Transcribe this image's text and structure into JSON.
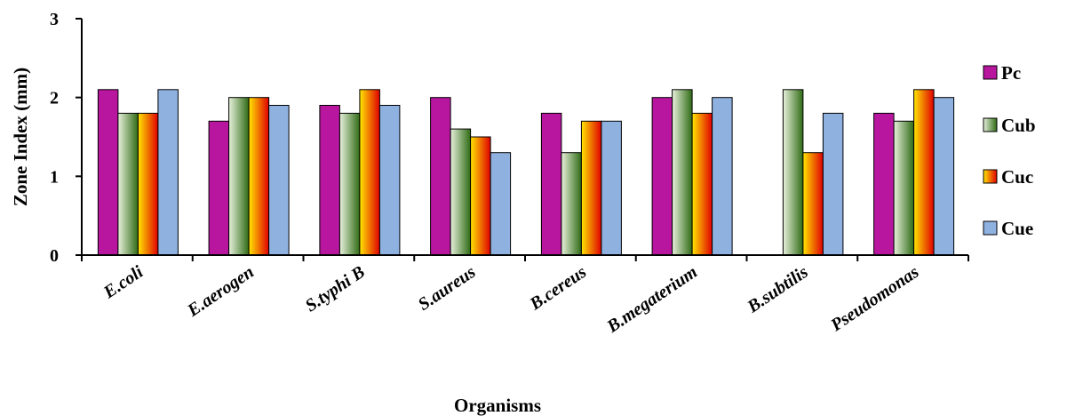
{
  "chart_data": {
    "type": "bar",
    "title": "",
    "xlabel": "Organisms",
    "ylabel": "Zone Index (mm)",
    "ylim": [
      0,
      3
    ],
    "yticks": [
      "0",
      "1",
      "2",
      "3"
    ],
    "grid": false,
    "legend_position": "right",
    "categories": [
      "E.coli",
      "E.aerogen",
      "S.typhi B",
      "S.aureus",
      "B.cereus",
      "B.megaterium",
      "B.subtilis",
      "Pseudomonas"
    ],
    "series": [
      {
        "name": "Pc",
        "color": "#b8169f",
        "values": [
          2.1,
          1.7,
          1.9,
          2.0,
          1.8,
          2.0,
          0,
          1.8
        ]
      },
      {
        "name": "Cub",
        "color": "#3a7a1c",
        "values": [
          1.8,
          2.0,
          1.8,
          1.6,
          1.3,
          2.1,
          2.1,
          1.7
        ]
      },
      {
        "name": "Cuc",
        "color": "#e8200a",
        "values": [
          1.8,
          2.0,
          2.1,
          1.5,
          1.7,
          1.8,
          1.3,
          2.1
        ]
      },
      {
        "name": "Cue",
        "color": "#8eb1e0",
        "values": [
          2.1,
          1.9,
          1.9,
          1.3,
          1.7,
          2.0,
          1.8,
          2.0
        ]
      }
    ]
  }
}
